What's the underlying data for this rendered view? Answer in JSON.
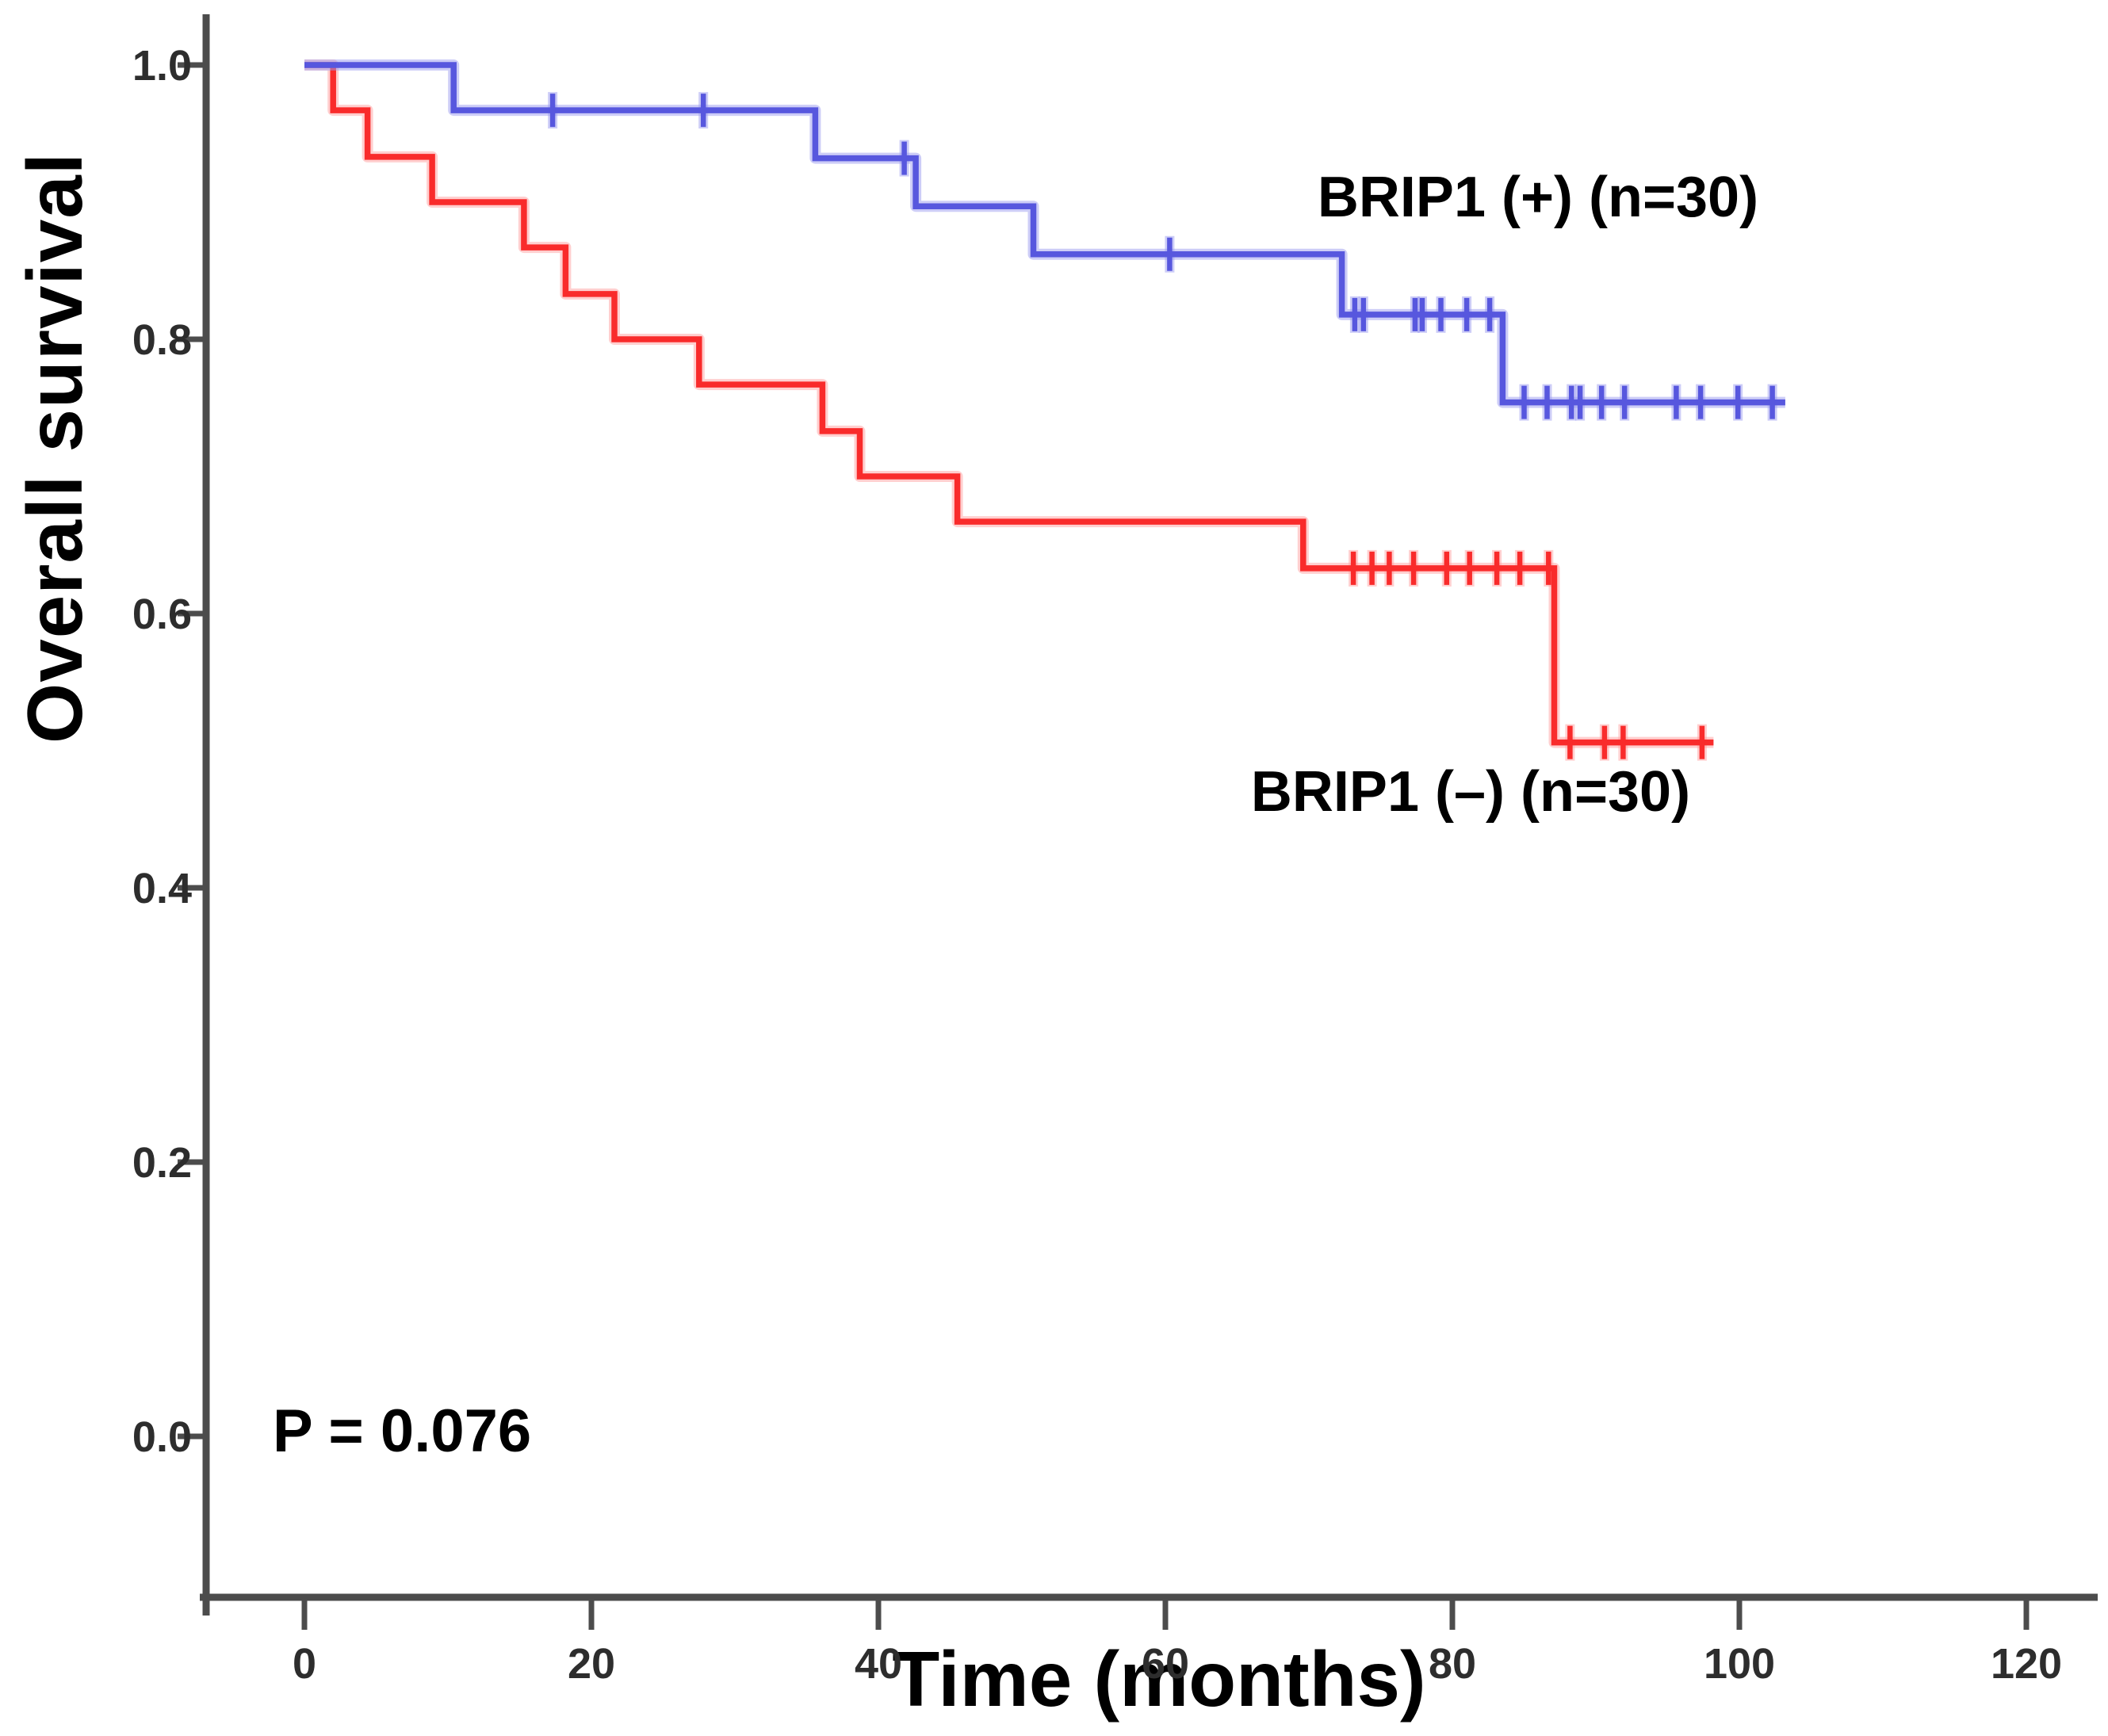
{
  "chart_data": {
    "type": "line",
    "subtype": "kaplan-meier-step",
    "title": "",
    "xlabel": "Time (months)",
    "ylabel": "Overall survival",
    "annotation": "P = 0.076",
    "axis_color": "#4c4c4c",
    "grid": false,
    "legend_position": "inline-labels",
    "xlim": [
      -7,
      125
    ],
    "ylim": [
      -0.12,
      1.04
    ],
    "x_ticks": [
      {
        "label": "0",
        "value": 0
      },
      {
        "label": "20",
        "value": 20
      },
      {
        "label": "40",
        "value": 40
      },
      {
        "label": "60",
        "value": 60
      },
      {
        "label": "80",
        "value": 80
      },
      {
        "label": "100",
        "value": 100
      },
      {
        "label": "120",
        "value": 120
      }
    ],
    "y_ticks": [
      {
        "label": "0.0",
        "value": 0.0
      },
      {
        "label": "0.2",
        "value": 0.2
      },
      {
        "label": "0.4",
        "value": 0.4
      },
      {
        "label": "0.6",
        "value": 0.6
      },
      {
        "label": "0.8",
        "value": 0.8
      },
      {
        "label": "1.0",
        "value": 1.0
      }
    ],
    "series": [
      {
        "name": "BRIP1 (–) (n=30)",
        "n": 30,
        "color": "#f92b2b",
        "halo": "#ffa0a0",
        "points": [
          [
            0,
            1.0
          ],
          [
            2.0,
            1.0
          ],
          [
            2.0,
            0.967
          ],
          [
            4.4,
            0.967
          ],
          [
            4.4,
            0.933
          ],
          [
            8.9,
            0.933
          ],
          [
            8.9,
            0.9
          ],
          [
            15.3,
            0.9
          ],
          [
            15.3,
            0.867
          ],
          [
            18.2,
            0.867
          ],
          [
            18.2,
            0.833
          ],
          [
            21.6,
            0.833
          ],
          [
            21.6,
            0.8
          ],
          [
            27.5,
            0.8
          ],
          [
            27.5,
            0.767
          ],
          [
            36.1,
            0.767
          ],
          [
            36.1,
            0.733
          ],
          [
            38.7,
            0.733
          ],
          [
            38.7,
            0.7
          ],
          [
            45.5,
            0.7
          ],
          [
            45.5,
            0.667
          ],
          [
            69.6,
            0.667
          ],
          [
            69.6,
            0.633
          ],
          [
            87.1,
            0.633
          ],
          [
            87.1,
            0.506
          ],
          [
            98.2,
            0.506
          ]
        ],
        "censors": [
          [
            73.1,
            0.633
          ],
          [
            74.4,
            0.633
          ],
          [
            75.6,
            0.633
          ],
          [
            77.3,
            0.633
          ],
          [
            79.6,
            0.633
          ],
          [
            81.2,
            0.633
          ],
          [
            83.1,
            0.633
          ],
          [
            84.7,
            0.633
          ],
          [
            86.7,
            0.633
          ],
          [
            88.2,
            0.506
          ],
          [
            90.6,
            0.506
          ],
          [
            91.9,
            0.506
          ],
          [
            97.4,
            0.506
          ]
        ]
      },
      {
        "name": "BRIP1 (+) (n=30)",
        "n": 30,
        "color": "#5757de",
        "halo": "#9b9bf0",
        "points": [
          [
            0,
            1.0
          ],
          [
            10.4,
            1.0
          ],
          [
            10.4,
            0.967
          ],
          [
            35.6,
            0.967
          ],
          [
            35.6,
            0.932
          ],
          [
            42.6,
            0.932
          ],
          [
            42.6,
            0.897
          ],
          [
            50.8,
            0.897
          ],
          [
            50.8,
            0.862
          ],
          [
            72.3,
            0.862
          ],
          [
            72.3,
            0.818
          ],
          [
            83.5,
            0.818
          ],
          [
            83.5,
            0.754
          ],
          [
            103.2,
            0.754
          ]
        ],
        "censors": [
          [
            17.3,
            0.967
          ],
          [
            27.8,
            0.967
          ],
          [
            41.8,
            0.932
          ],
          [
            60.3,
            0.862
          ],
          [
            73.2,
            0.818
          ],
          [
            73.8,
            0.818
          ],
          [
            77.4,
            0.818
          ],
          [
            77.9,
            0.818
          ],
          [
            79.2,
            0.818
          ],
          [
            81.0,
            0.818
          ],
          [
            82.6,
            0.818
          ],
          [
            85.0,
            0.754
          ],
          [
            86.6,
            0.754
          ],
          [
            88.3,
            0.754
          ],
          [
            88.9,
            0.754
          ],
          [
            90.4,
            0.754
          ],
          [
            92.0,
            0.754
          ],
          [
            95.6,
            0.754
          ],
          [
            97.3,
            0.754
          ],
          [
            99.9,
            0.754
          ],
          [
            102.3,
            0.754
          ]
        ]
      }
    ]
  }
}
